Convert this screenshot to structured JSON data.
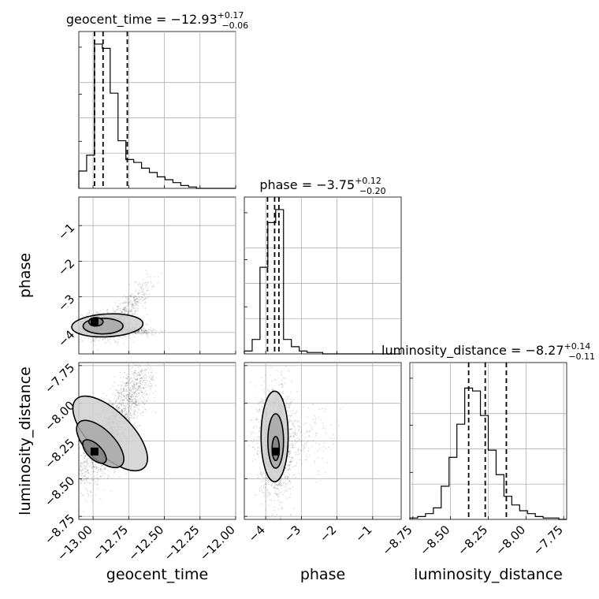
{
  "chart_data": {
    "type": "scatter",
    "subtype": "corner_plot",
    "grid": true,
    "parameters": [
      {
        "name": "geocent_time",
        "median": "−12.93",
        "upper": "+0.17",
        "lower": "−0.06",
        "range": [
          -13.1,
          -12.0
        ],
        "quantiles": [
          -12.99,
          -12.93,
          -12.76
        ],
        "ticks": [
          "−13.00",
          "−12.75",
          "−12.50",
          "−12.25",
          "−12.00"
        ],
        "tick_values": [
          -13.0,
          -12.75,
          -12.5,
          -12.25,
          -12.0
        ],
        "hist": [
          0.12,
          0.23,
          1.0,
          0.97,
          0.66,
          0.33,
          0.2,
          0.18,
          0.14,
          0.11,
          0.08,
          0.06,
          0.04,
          0.02,
          0.01,
          0.0,
          0.0,
          0.0,
          0.0,
          0.0
        ]
      },
      {
        "name": "phase",
        "median": "−3.75",
        "upper": "+0.12",
        "lower": "−0.20",
        "range": [
          -4.6,
          -0.2
        ],
        "quantiles": [
          -3.95,
          -3.75,
          -3.63
        ],
        "ticks": [
          "−4",
          "−3",
          "−2",
          "−1"
        ],
        "tick_values": [
          -4,
          -3,
          -2,
          -1
        ],
        "hist": [
          0.02,
          0.1,
          0.6,
          0.91,
          1.0,
          0.1,
          0.05,
          0.02,
          0.01,
          0.01,
          0.0,
          0.0,
          0.0,
          0.0,
          0.0,
          0.0,
          0.0,
          0.0,
          0.0,
          0.0
        ]
      },
      {
        "name": "luminosity_distance",
        "median": "−8.27",
        "upper": "+0.14",
        "lower": "−0.11",
        "range": [
          -8.77,
          -7.73
        ],
        "quantiles": [
          -8.38,
          -8.27,
          -8.13
        ],
        "ticks": [
          "−8.75",
          "−8.50",
          "−8.25",
          "−8.00",
          "−7.75"
        ],
        "tick_values": [
          -8.75,
          -8.5,
          -8.25,
          -8.0,
          -7.75
        ],
        "hist": [
          0.01,
          0.02,
          0.04,
          0.08,
          0.23,
          0.43,
          0.66,
          0.91,
          0.89,
          0.72,
          0.48,
          0.31,
          0.16,
          0.1,
          0.06,
          0.04,
          0.02,
          0.01,
          0.01,
          0.0
        ]
      }
    ],
    "pairs": [
      {
        "x": "geocent_time",
        "y": "phase",
        "peak": [
          -12.99,
          -3.7
        ],
        "contours": [
          {
            "cx": -12.98,
            "cy": -3.7,
            "rx": 0.05,
            "ry": 0.12,
            "rot": 0
          },
          {
            "cx": -12.93,
            "cy": -3.82,
            "rx": 0.14,
            "ry": 0.22,
            "rot": 0
          },
          {
            "cx": -12.9,
            "cy": -3.8,
            "rx": 0.25,
            "ry": 0.32,
            "rot": -3
          }
        ],
        "clouds": [
          {
            "cx": -12.92,
            "cy": -3.8,
            "sx": 0.1,
            "sy": 0.18,
            "corr": 0.1,
            "n": 1500
          },
          {
            "cx": -12.75,
            "cy": -3.3,
            "sx": 0.08,
            "sy": 0.4,
            "corr": 0.85,
            "n": 350
          },
          {
            "cx": -12.72,
            "cy": -3.95,
            "sx": 0.08,
            "sy": 0.06,
            "corr": -0.3,
            "n": 250
          }
        ]
      },
      {
        "x": "geocent_time",
        "y": "luminosity_distance",
        "peak": [
          -12.99,
          -8.32
        ],
        "contours": [
          {
            "cx": -12.99,
            "cy": -8.32,
            "rx": 0.05,
            "ry": 0.1,
            "rot": -45
          },
          {
            "cx": -12.95,
            "cy": -8.27,
            "rx": 0.1,
            "ry": 0.2,
            "rot": -45
          },
          {
            "cx": -12.88,
            "cy": -8.2,
            "rx": 0.15,
            "ry": 0.32,
            "rot": -45
          }
        ],
        "clouds": [
          {
            "cx": -12.9,
            "cy": -8.22,
            "sx": 0.13,
            "sy": 0.19,
            "corr": 0.8,
            "n": 1500
          },
          {
            "cx": -12.7,
            "cy": -7.9,
            "sx": 0.06,
            "sy": 0.1,
            "corr": 0.5,
            "n": 300
          }
        ]
      },
      {
        "x": "phase",
        "y": "luminosity_distance",
        "peak": [
          -3.72,
          -8.32
        ],
        "contours": [
          {
            "cx": -3.72,
            "cy": -8.3,
            "rx": 0.1,
            "ry": 0.08,
            "rot": 0
          },
          {
            "cx": -3.72,
            "cy": -8.25,
            "rx": 0.22,
            "ry": 0.18,
            "rot": 0
          },
          {
            "cx": -3.75,
            "cy": -8.22,
            "rx": 0.38,
            "ry": 0.3,
            "rot": 0
          }
        ],
        "clouds": [
          {
            "cx": -3.72,
            "cy": -8.25,
            "sx": 0.22,
            "sy": 0.18,
            "corr": 0.0,
            "n": 1700
          },
          {
            "cx": -3.2,
            "cy": -8.25,
            "sx": 0.6,
            "sy": 0.12,
            "corr": 0.0,
            "n": 250
          }
        ]
      }
    ]
  }
}
